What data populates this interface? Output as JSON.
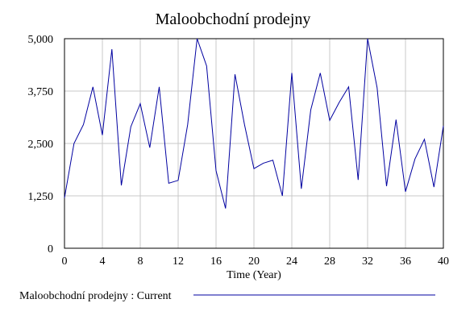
{
  "chart_data": {
    "type": "line",
    "title": "Maloobchodní prodejny",
    "xlabel": "Time (Year)",
    "ylabel": "",
    "xlim": [
      0,
      40
    ],
    "ylim": [
      0,
      5000
    ],
    "grid": true,
    "x_ticks": [
      0,
      4,
      8,
      12,
      16,
      20,
      24,
      28,
      32,
      36,
      40
    ],
    "x_tick_labels": [
      "0",
      "4",
      "8",
      "12",
      "16",
      "20",
      "24",
      "28",
      "32",
      "36",
      "40"
    ],
    "y_ticks": [
      0,
      1250,
      2500,
      3750,
      5000
    ],
    "y_tick_labels": [
      "0",
      "1,250",
      "2,500",
      "3,750",
      "5,000"
    ],
    "legend_position": "bottom",
    "series": [
      {
        "name": "Maloobchodní prodejny : Current",
        "color": "#0000a0",
        "x": [
          0,
          1,
          2,
          3,
          4,
          5,
          6,
          7,
          8,
          9,
          10,
          11,
          12,
          13,
          14,
          15,
          16,
          17,
          18,
          19,
          20,
          21,
          22,
          23,
          24,
          25,
          26,
          27,
          28,
          29,
          30,
          31,
          32,
          33,
          34,
          35,
          36,
          37,
          38,
          39,
          40
        ],
        "values": [
          1200,
          2500,
          2950,
          3850,
          2700,
          4750,
          1500,
          2900,
          3450,
          2400,
          3850,
          1550,
          1620,
          2950,
          5000,
          4350,
          1850,
          950,
          4150,
          2950,
          1900,
          2030,
          2100,
          1250,
          4180,
          1420,
          3300,
          4180,
          3050,
          3480,
          3850,
          1630,
          5200,
          3830,
          1480,
          3070,
          1350,
          2130,
          2600,
          1460,
          2920
        ]
      }
    ]
  }
}
